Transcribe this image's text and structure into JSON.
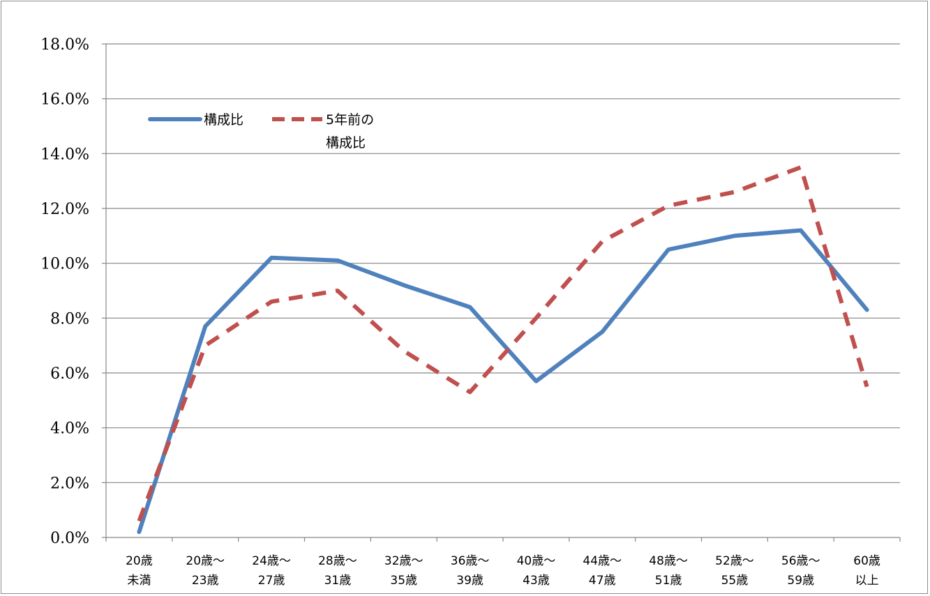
{
  "chart_data": {
    "type": "line",
    "title": "",
    "xlabel": "",
    "ylabel": "",
    "categories": [
      [
        "20歳",
        "未満"
      ],
      [
        "20歳～",
        "23歳"
      ],
      [
        "24歳～",
        "27歳"
      ],
      [
        "28歳～",
        "31歳"
      ],
      [
        "32歳～",
        "35歳"
      ],
      [
        "36歳～",
        "39歳"
      ],
      [
        "40歳～",
        "43歳"
      ],
      [
        "44歳～",
        "47歳"
      ],
      [
        "48歳～",
        "51歳"
      ],
      [
        "52歳～",
        "55歳"
      ],
      [
        "56歳～",
        "59歳"
      ],
      [
        "60歳",
        "以上"
      ]
    ],
    "ylim": [
      0,
      18
    ],
    "ytick_step": 2,
    "ytick_labels": [
      "0.0%",
      "2.0%",
      "4.0%",
      "6.0%",
      "8.0%",
      "10.0%",
      "12.0%",
      "14.0%",
      "16.0%",
      "18.0%"
    ],
    "grid": true,
    "legend_position": "top-left",
    "series": [
      {
        "name": [
          "構成比"
        ],
        "style": "solid",
        "color": "#4f81bd",
        "values": [
          0.2,
          7.7,
          10.2,
          10.1,
          9.2,
          8.4,
          5.7,
          7.5,
          10.5,
          11.0,
          11.2,
          8.3
        ]
      },
      {
        "name": [
          "5年前の",
          "構成比"
        ],
        "style": "dashed",
        "color": "#c0504d",
        "values": [
          0.6,
          7.0,
          8.6,
          9.0,
          6.8,
          5.3,
          8.0,
          10.8,
          12.1,
          12.6,
          13.5,
          5.5
        ]
      }
    ]
  }
}
